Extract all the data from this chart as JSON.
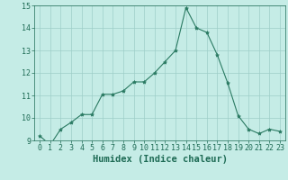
{
  "xlabel": "Humidex (Indice chaleur)",
  "x": [
    0,
    1,
    2,
    3,
    4,
    5,
    6,
    7,
    8,
    9,
    10,
    11,
    12,
    13,
    14,
    15,
    16,
    17,
    18,
    19,
    20,
    21,
    22,
    23
  ],
  "y": [
    9.2,
    8.8,
    9.5,
    9.8,
    10.15,
    10.15,
    11.05,
    11.05,
    11.2,
    11.6,
    11.6,
    12.0,
    12.5,
    13.0,
    14.9,
    14.0,
    13.8,
    12.8,
    11.55,
    10.1,
    9.5,
    9.3,
    9.5,
    9.4
  ],
  "line_color": "#2a7a62",
  "marker": "*",
  "marker_size": 3,
  "bg_color": "#c5ece6",
  "grid_color": "#9ecec8",
  "text_color": "#1e6b55",
  "ylim": [
    9,
    15
  ],
  "xlim": [
    -0.5,
    23.5
  ],
  "yticks": [
    9,
    10,
    11,
    12,
    13,
    14,
    15
  ],
  "xticks": [
    0,
    1,
    2,
    3,
    4,
    5,
    6,
    7,
    8,
    9,
    10,
    11,
    12,
    13,
    14,
    15,
    16,
    17,
    18,
    19,
    20,
    21,
    22,
    23
  ],
  "xlabel_fontsize": 7.5,
  "tick_fontsize": 6
}
